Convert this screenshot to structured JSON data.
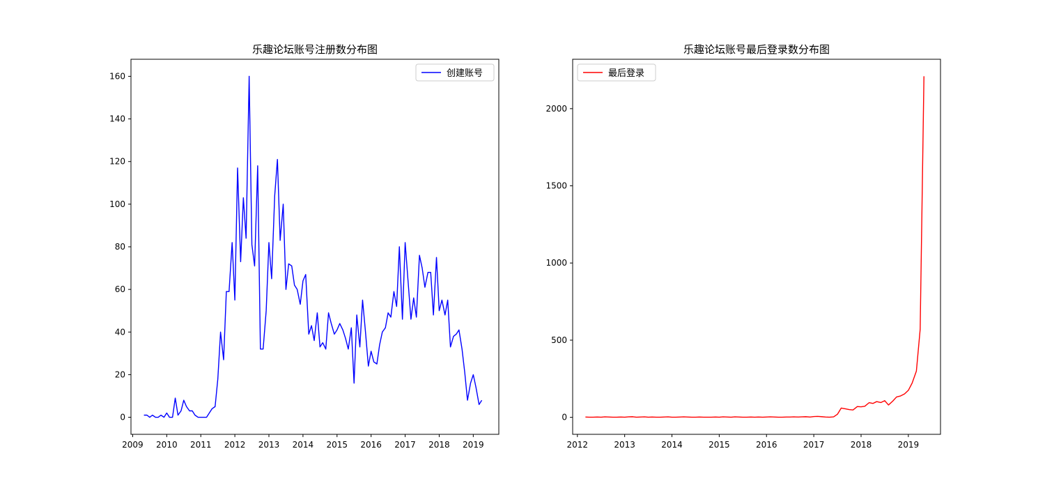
{
  "chart_data": [
    {
      "type": "line",
      "title": "乐趣论坛账号注册数分布图",
      "xlabel": "",
      "ylabel": "",
      "grid": false,
      "legend_position": "upper right",
      "xlim": [
        2008.95,
        2019.75
      ],
      "ylim": [
        -8,
        168
      ],
      "xticks": [
        2009,
        2010,
        2011,
        2012,
        2013,
        2014,
        2015,
        2016,
        2017,
        2018,
        2019
      ],
      "xtick_labels": [
        "2009",
        "2010",
        "2011",
        "2012",
        "2013",
        "2014",
        "2015",
        "2016",
        "2017",
        "2018",
        "2019"
      ],
      "yticks": [
        0,
        20,
        40,
        60,
        80,
        100,
        120,
        140,
        160
      ],
      "ytick_labels": [
        "0",
        "20",
        "40",
        "60",
        "80",
        "100",
        "120",
        "140",
        "160"
      ],
      "series": [
        {
          "name": "创建账号",
          "color": "#0000ff",
          "x": [
            2009.33,
            2009.42,
            2009.5,
            2009.58,
            2009.67,
            2009.75,
            2009.83,
            2009.92,
            2010.0,
            2010.08,
            2010.17,
            2010.25,
            2010.33,
            2010.42,
            2010.5,
            2010.58,
            2010.67,
            2010.75,
            2010.83,
            2010.92,
            2011.0,
            2011.08,
            2011.17,
            2011.25,
            2011.33,
            2011.42,
            2011.5,
            2011.58,
            2011.67,
            2011.75,
            2011.83,
            2011.92,
            2012.0,
            2012.08,
            2012.17,
            2012.25,
            2012.33,
            2012.42,
            2012.5,
            2012.58,
            2012.67,
            2012.75,
            2012.83,
            2012.92,
            2013.0,
            2013.08,
            2013.17,
            2013.25,
            2013.33,
            2013.42,
            2013.5,
            2013.58,
            2013.67,
            2013.75,
            2013.83,
            2013.92,
            2014.0,
            2014.08,
            2014.17,
            2014.25,
            2014.33,
            2014.42,
            2014.5,
            2014.58,
            2014.67,
            2014.75,
            2014.83,
            2014.92,
            2015.0,
            2015.08,
            2015.17,
            2015.25,
            2015.33,
            2015.42,
            2015.5,
            2015.58,
            2015.67,
            2015.75,
            2015.83,
            2015.92,
            2016.0,
            2016.08,
            2016.17,
            2016.25,
            2016.33,
            2016.42,
            2016.5,
            2016.58,
            2016.67,
            2016.75,
            2016.83,
            2016.92,
            2017.0,
            2017.08,
            2017.17,
            2017.25,
            2017.33,
            2017.42,
            2017.5,
            2017.58,
            2017.67,
            2017.75,
            2017.83,
            2017.92,
            2018.0,
            2018.08,
            2018.17,
            2018.25,
            2018.33,
            2018.42,
            2018.5,
            2018.58,
            2018.67,
            2018.75,
            2018.83,
            2018.92,
            2019.0,
            2019.08,
            2019.17,
            2019.25
          ],
          "values": [
            1,
            1,
            0,
            1,
            0,
            0,
            1,
            0,
            2,
            0,
            0,
            9,
            1,
            3,
            8,
            5,
            3,
            3,
            1,
            0,
            0,
            0,
            0,
            2,
            4,
            5,
            18,
            40,
            27,
            59,
            59,
            82,
            55,
            117,
            73,
            103,
            84,
            160,
            81,
            71,
            118,
            32,
            32,
            50,
            82,
            65,
            104,
            121,
            83,
            100,
            60,
            72,
            71,
            62,
            60,
            53,
            64,
            67,
            39,
            43,
            36,
            49,
            33,
            35,
            32,
            49,
            44,
            39,
            41,
            44,
            41,
            37,
            32,
            42,
            16,
            48,
            33,
            55,
            41,
            24,
            31,
            26,
            25,
            34,
            40,
            42,
            49,
            47,
            59,
            52,
            80,
            46,
            82,
            65,
            46,
            56,
            47,
            76,
            70,
            61,
            68,
            68,
            48,
            75,
            50,
            55,
            48,
            55,
            33,
            38,
            39,
            41,
            32,
            21,
            8,
            16,
            20,
            14,
            6,
            8
          ]
        }
      ]
    },
    {
      "type": "line",
      "title": "乐趣论坛账号最后登录数分布图",
      "xlabel": "",
      "ylabel": "",
      "grid": false,
      "legend_position": "upper left",
      "xlim": [
        2011.9,
        2019.68
      ],
      "ylim": [
        -110,
        2320
      ],
      "xticks": [
        2012,
        2013,
        2014,
        2015,
        2016,
        2017,
        2018,
        2019
      ],
      "xtick_labels": [
        "2012",
        "2013",
        "2014",
        "2015",
        "2016",
        "2017",
        "2018",
        "2019"
      ],
      "yticks": [
        0,
        500,
        1000,
        1500,
        2000
      ],
      "ytick_labels": [
        "0",
        "500",
        "1000",
        "1500",
        "2000"
      ],
      "series": [
        {
          "name": "最后登录",
          "color": "#ff0000",
          "x": [
            2012.17,
            2012.25,
            2012.33,
            2012.42,
            2012.5,
            2012.58,
            2012.67,
            2012.75,
            2012.83,
            2012.92,
            2013.0,
            2013.08,
            2013.17,
            2013.25,
            2013.33,
            2013.42,
            2013.5,
            2013.58,
            2013.67,
            2013.75,
            2013.83,
            2013.92,
            2014.0,
            2014.08,
            2014.17,
            2014.25,
            2014.33,
            2014.42,
            2014.5,
            2014.58,
            2014.67,
            2014.75,
            2014.83,
            2014.92,
            2015.0,
            2015.08,
            2015.17,
            2015.25,
            2015.33,
            2015.42,
            2015.5,
            2015.58,
            2015.67,
            2015.75,
            2015.83,
            2015.92,
            2016.0,
            2016.08,
            2016.17,
            2016.25,
            2016.33,
            2016.42,
            2016.5,
            2016.58,
            2016.67,
            2016.75,
            2016.83,
            2016.92,
            2017.0,
            2017.08,
            2017.17,
            2017.25,
            2017.33,
            2017.42,
            2017.5,
            2017.58,
            2017.67,
            2017.75,
            2017.83,
            2017.92,
            2018.0,
            2018.08,
            2018.17,
            2018.25,
            2018.33,
            2018.42,
            2018.5,
            2018.58,
            2018.67,
            2018.75,
            2018.83,
            2018.92,
            2019.0,
            2019.08,
            2019.17,
            2019.25,
            2019.33
          ],
          "values": [
            2,
            1,
            1,
            2,
            1,
            3,
            2,
            1,
            1,
            2,
            1,
            3,
            4,
            1,
            2,
            3,
            1,
            2,
            1,
            1,
            2,
            3,
            1,
            1,
            2,
            3,
            2,
            1,
            1,
            2,
            1,
            1,
            1,
            2,
            1,
            3,
            2,
            1,
            3,
            2,
            1,
            1,
            2,
            1,
            2,
            1,
            2,
            3,
            2,
            1,
            1,
            2,
            2,
            3,
            2,
            3,
            4,
            2,
            5,
            6,
            4,
            2,
            1,
            3,
            20,
            60,
            55,
            50,
            48,
            70,
            68,
            72,
            95,
            90,
            102,
            96,
            108,
            80,
            105,
            132,
            138,
            152,
            175,
            222,
            300,
            570,
            2210
          ]
        }
      ]
    }
  ]
}
